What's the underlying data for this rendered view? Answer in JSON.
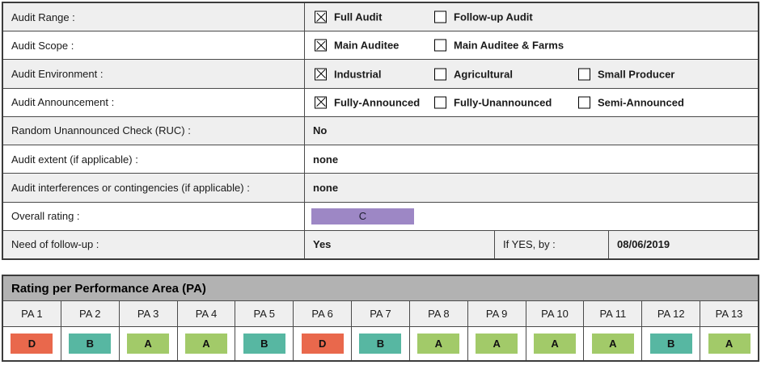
{
  "colors": {
    "grade_a": "#a2ca69",
    "grade_b": "#57b7a2",
    "grade_d": "#e9684c",
    "overall_c": "#9d87c5",
    "row_shade": "#efefef",
    "pa_title_bg": "#b2b2b2"
  },
  "form": {
    "rows": [
      {
        "label": "Audit Range :",
        "options": [
          {
            "label": "Full Audit",
            "checked": true
          },
          {
            "label": "Follow-up Audit",
            "checked": false
          }
        ]
      },
      {
        "label": "Audit Scope :",
        "options": [
          {
            "label": "Main Auditee",
            "checked": true
          },
          {
            "label": "Main Auditee & Farms",
            "checked": false
          }
        ]
      },
      {
        "label": "Audit Environment :",
        "options": [
          {
            "label": "Industrial",
            "checked": true
          },
          {
            "label": "Agricultural",
            "checked": false
          },
          {
            "label": "Small Producer",
            "checked": false
          }
        ]
      },
      {
        "label": "Audit Announcement :",
        "options": [
          {
            "label": "Fully-Announced",
            "checked": true
          },
          {
            "label": "Fully-Unannounced",
            "checked": false
          },
          {
            "label": "Semi-Announced",
            "checked": false
          }
        ]
      },
      {
        "label": "Random Unannounced Check (RUC) :",
        "value": "No"
      },
      {
        "label": "Audit extent (if applicable) :",
        "value": "none"
      },
      {
        "label": "Audit interferences or contingencies (if applicable) :",
        "value": "none"
      },
      {
        "label": "Overall rating :",
        "rating": "C",
        "rating_color": "#9d87c5"
      },
      {
        "label": "Need of follow-up :",
        "value": "Yes",
        "if_yes_label": "If YES, by :",
        "if_yes_date": "08/06/2019"
      }
    ]
  },
  "pa_table": {
    "title": "Rating per Performance Area (PA)",
    "columns": [
      {
        "label": "PA 1",
        "grade": "D",
        "color": "#e9684c"
      },
      {
        "label": "PA 2",
        "grade": "B",
        "color": "#57b7a2"
      },
      {
        "label": "PA 3",
        "grade": "A",
        "color": "#a2ca69"
      },
      {
        "label": "PA 4",
        "grade": "A",
        "color": "#a2ca69"
      },
      {
        "label": "PA 5",
        "grade": "B",
        "color": "#57b7a2"
      },
      {
        "label": "PA 6",
        "grade": "D",
        "color": "#e9684c"
      },
      {
        "label": "PA 7",
        "grade": "B",
        "color": "#57b7a2"
      },
      {
        "label": "PA 8",
        "grade": "A",
        "color": "#a2ca69"
      },
      {
        "label": "PA 9",
        "grade": "A",
        "color": "#a2ca69"
      },
      {
        "label": "PA 10",
        "grade": "A",
        "color": "#a2ca69"
      },
      {
        "label": "PA 11",
        "grade": "A",
        "color": "#a2ca69"
      },
      {
        "label": "PA 12",
        "grade": "B",
        "color": "#57b7a2"
      },
      {
        "label": "PA 13",
        "grade": "A",
        "color": "#a2ca69"
      }
    ]
  }
}
